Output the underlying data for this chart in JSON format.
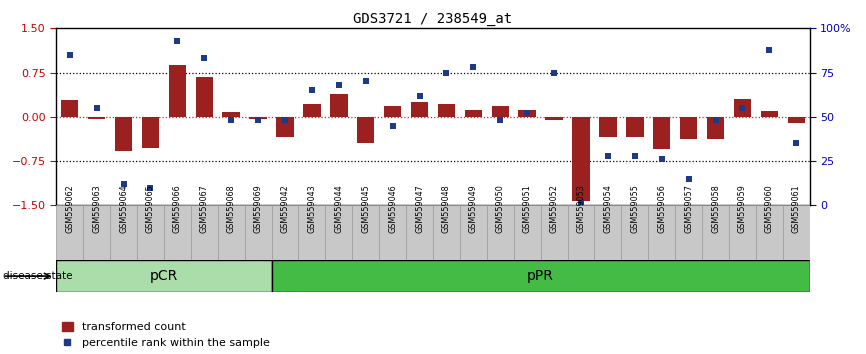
{
  "title": "GDS3721 / 238549_at",
  "samples": [
    "GSM559062",
    "GSM559063",
    "GSM559064",
    "GSM559065",
    "GSM559066",
    "GSM559067",
    "GSM559068",
    "GSM559069",
    "GSM559042",
    "GSM559043",
    "GSM559044",
    "GSM559045",
    "GSM559046",
    "GSM559047",
    "GSM559048",
    "GSM559049",
    "GSM559050",
    "GSM559051",
    "GSM559052",
    "GSM559053",
    "GSM559054",
    "GSM559055",
    "GSM559056",
    "GSM559057",
    "GSM559058",
    "GSM559059",
    "GSM559060",
    "GSM559061"
  ],
  "bar_values": [
    0.28,
    -0.03,
    -0.58,
    -0.52,
    0.88,
    0.68,
    0.08,
    -0.03,
    -0.35,
    0.22,
    0.38,
    -0.45,
    0.18,
    0.25,
    0.22,
    0.12,
    0.18,
    0.12,
    -0.05,
    -1.42,
    -0.35,
    -0.35,
    -0.55,
    -0.38,
    -0.38,
    0.3,
    0.1,
    -0.1
  ],
  "dot_values": [
    85,
    55,
    12,
    10,
    93,
    83,
    48,
    48,
    48,
    65,
    68,
    70,
    45,
    62,
    75,
    78,
    48,
    52,
    75,
    2,
    28,
    28,
    26,
    15,
    48,
    55,
    88,
    35
  ],
  "pCR_count": 8,
  "pPR_count": 20,
  "bar_color": "#9B2020",
  "dot_color": "#1B3A8A",
  "zero_line_color": "#CC2222",
  "left_y_color": "#CC0000",
  "right_y_color": "#0000BB",
  "pCR_color_light": "#AADDAA",
  "pCR_color_dark": "#55BB55",
  "pPR_color": "#44BB44",
  "xticklabel_bg": "#C8C8C8",
  "xticklabel_fg": "#000000",
  "title_color": "#000000",
  "ylim": [
    -1.5,
    1.5
  ],
  "right_ylim": [
    0,
    100
  ],
  "legend_bar": "transformed count",
  "legend_dot": "percentile rank within the sample",
  "disease_state_label": "disease state",
  "pCR_label": "pCR",
  "pPR_label": "pPR"
}
